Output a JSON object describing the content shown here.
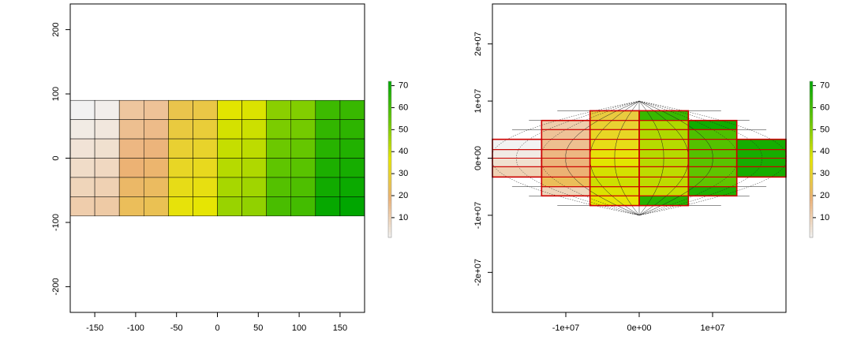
{
  "chart_data": [
    {
      "type": "heatmap",
      "title": "",
      "xlabel": "",
      "ylabel": "",
      "xlim": [
        -180,
        180
      ],
      "ylim": [
        -240,
        240
      ],
      "x_ticks": [
        {
          "value": -150,
          "label": "-150"
        },
        {
          "value": -100,
          "label": "-100"
        },
        {
          "value": -50,
          "label": "-50"
        },
        {
          "value": 0,
          "label": "0"
        },
        {
          "value": 50,
          "label": "50"
        },
        {
          "value": 100,
          "label": "100"
        },
        {
          "value": 150,
          "label": "150"
        }
      ],
      "y_ticks": [
        {
          "value": -200,
          "label": "-200"
        },
        {
          "value": -100,
          "label": "-100"
        },
        {
          "value": 0,
          "label": "0"
        },
        {
          "value": 100,
          "label": "100"
        },
        {
          "value": 200,
          "label": "200"
        }
      ],
      "x_edges": [
        -180,
        -150,
        -120,
        -90,
        -60,
        -30,
        0,
        30,
        60,
        90,
        120,
        150,
        180
      ],
      "y_edges": [
        90,
        60,
        30,
        0,
        -30,
        -60,
        -90
      ],
      "values": [
        [
          1,
          2,
          13,
          14,
          25,
          26,
          37,
          38,
          49,
          50,
          61,
          62
        ],
        [
          3,
          4,
          15,
          16,
          27,
          28,
          39,
          40,
          51,
          52,
          63,
          64
        ],
        [
          5,
          6,
          17,
          18,
          29,
          30,
          41,
          42,
          53,
          54,
          65,
          66
        ],
        [
          7,
          8,
          19,
          20,
          31,
          32,
          43,
          44,
          55,
          56,
          67,
          68
        ],
        [
          9,
          10,
          21,
          22,
          33,
          34,
          45,
          46,
          57,
          58,
          69,
          70
        ],
        [
          11,
          12,
          23,
          24,
          35,
          36,
          47,
          48,
          59,
          60,
          71,
          72
        ]
      ],
      "legend_ticks": [
        10,
        20,
        30,
        40,
        50,
        60,
        70
      ],
      "legend_range": [
        1,
        72
      ],
      "legend_position": "right"
    },
    {
      "type": "heatmap",
      "title": "",
      "xlabel": "",
      "ylabel": "",
      "xlim": [
        -20000000,
        20000000
      ],
      "ylim": [
        -27000000,
        27000000
      ],
      "x_ticks": [
        {
          "value": -10000000,
          "label": "-1e+07"
        },
        {
          "value": 0,
          "label": "0e+00"
        },
        {
          "value": 10000000,
          "label": "1e+07"
        }
      ],
      "y_ticks": [
        {
          "value": -20000000,
          "label": "-2e+07"
        },
        {
          "value": -10000000,
          "label": "-1e+07"
        },
        {
          "value": 0,
          "label": "0e+00"
        },
        {
          "value": 10000000,
          "label": "1e+07"
        },
        {
          "value": 20000000,
          "label": "2e+07"
        }
      ],
      "cells": [
        {
          "x": [
            -20000000,
            -13300000
          ],
          "y": [
            1500000,
            3300000
          ],
          "value": 1
        },
        {
          "x": [
            -20000000,
            -13300000
          ],
          "y": [
            0,
            1500000
          ],
          "value": 3
        },
        {
          "x": [
            -20000000,
            -13300000
          ],
          "y": [
            -1500000,
            0
          ],
          "value": 6
        },
        {
          "x": [
            -20000000,
            -13300000
          ],
          "y": [
            -3300000,
            -1500000
          ],
          "value": 10
        },
        {
          "x": [
            -13300000,
            -6700000
          ],
          "y": [
            5000000,
            6600000
          ],
          "value": 11
        },
        {
          "x": [
            -13300000,
            -6700000
          ],
          "y": [
            3300000,
            5000000
          ],
          "value": 14
        },
        {
          "x": [
            -13300000,
            -6700000
          ],
          "y": [
            1500000,
            3300000
          ],
          "value": 15
        },
        {
          "x": [
            -13300000,
            -6700000
          ],
          "y": [
            0,
            1500000
          ],
          "value": 17
        },
        {
          "x": [
            -13300000,
            -6700000
          ],
          "y": [
            -1500000,
            0
          ],
          "value": 18
        },
        {
          "x": [
            -13300000,
            -6700000
          ],
          "y": [
            -3300000,
            -1500000
          ],
          "value": 19
        },
        {
          "x": [
            -13300000,
            -6700000
          ],
          "y": [
            -5000000,
            -3300000
          ],
          "value": 23
        },
        {
          "x": [
            -13300000,
            -6700000
          ],
          "y": [
            -6600000,
            -5000000
          ],
          "value": 9
        },
        {
          "x": [
            -6700000,
            0
          ],
          "y": [
            6600000,
            8300000
          ],
          "value": 27
        },
        {
          "x": [
            -6700000,
            0
          ],
          "y": [
            5000000,
            6600000
          ],
          "value": 29
        },
        {
          "x": [
            -6700000,
            0
          ],
          "y": [
            3300000,
            5000000
          ],
          "value": 31
        },
        {
          "x": [
            -6700000,
            0
          ],
          "y": [
            1500000,
            3300000
          ],
          "value": 33
        },
        {
          "x": [
            -6700000,
            0
          ],
          "y": [
            0,
            1500000
          ],
          "value": 35
        },
        {
          "x": [
            -6700000,
            0
          ],
          "y": [
            -1500000,
            0
          ],
          "value": 37
        },
        {
          "x": [
            -6700000,
            0
          ],
          "y": [
            -3300000,
            -1500000
          ],
          "value": 39
        },
        {
          "x": [
            -6700000,
            0
          ],
          "y": [
            -5000000,
            -3300000
          ],
          "value": 40
        },
        {
          "x": [
            -6700000,
            0
          ],
          "y": [
            -6600000,
            -5000000
          ],
          "value": 38
        },
        {
          "x": [
            -6700000,
            0
          ],
          "y": [
            -8300000,
            -6600000
          ],
          "value": 36
        },
        {
          "x": [
            0,
            6700000
          ],
          "y": [
            6600000,
            8300000
          ],
          "value": 62
        },
        {
          "x": [
            0,
            6700000
          ],
          "y": [
            5000000,
            6600000
          ],
          "value": 44
        },
        {
          "x": [
            0,
            6700000
          ],
          "y": [
            3300000,
            5000000
          ],
          "value": 44
        },
        {
          "x": [
            0,
            6700000
          ],
          "y": [
            1500000,
            3300000
          ],
          "value": 43
        },
        {
          "x": [
            0,
            6700000
          ],
          "y": [
            0,
            1500000
          ],
          "value": 43
        },
        {
          "x": [
            0,
            6700000
          ],
          "y": [
            -1500000,
            0
          ],
          "value": 43
        },
        {
          "x": [
            0,
            6700000
          ],
          "y": [
            -3300000,
            -1500000
          ],
          "value": 42
        },
        {
          "x": [
            0,
            6700000
          ],
          "y": [
            -5000000,
            -3300000
          ],
          "value": 42
        },
        {
          "x": [
            0,
            6700000
          ],
          "y": [
            -6600000,
            -5000000
          ],
          "value": 41
        },
        {
          "x": [
            0,
            6700000
          ],
          "y": [
            -8300000,
            -6600000
          ],
          "value": 65
        },
        {
          "x": [
            6700000,
            13300000
          ],
          "y": [
            5000000,
            6600000
          ],
          "value": 69
        },
        {
          "x": [
            6700000,
            13300000
          ],
          "y": [
            3300000,
            5000000
          ],
          "value": 58
        },
        {
          "x": [
            6700000,
            13300000
          ],
          "y": [
            1500000,
            3300000
          ],
          "value": 57
        },
        {
          "x": [
            6700000,
            13300000
          ],
          "y": [
            0,
            1500000
          ],
          "value": 57
        },
        {
          "x": [
            6700000,
            13300000
          ],
          "y": [
            -1500000,
            0
          ],
          "value": 56
        },
        {
          "x": [
            6700000,
            13300000
          ],
          "y": [
            -3300000,
            -1500000
          ],
          "value": 55
        },
        {
          "x": [
            6700000,
            13300000
          ],
          "y": [
            -5000000,
            -3300000
          ],
          "value": 55
        },
        {
          "x": [
            6700000,
            13300000
          ],
          "y": [
            -6600000,
            -5000000
          ],
          "value": 66
        },
        {
          "x": [
            13300000,
            20000000
          ],
          "y": [
            1500000,
            3300000
          ],
          "value": 68
        },
        {
          "x": [
            13300000,
            20000000
          ],
          "y": [
            0,
            1500000
          ],
          "value": 68
        },
        {
          "x": [
            13300000,
            20000000
          ],
          "y": [
            -1500000,
            0
          ],
          "value": 68
        },
        {
          "x": [
            13300000,
            20000000
          ],
          "y": [
            -3300000,
            -1500000
          ],
          "value": 68
        }
      ],
      "outlined_blocks": [
        {
          "x": [
            -20000000,
            -13300000
          ],
          "y": [
            -3300000,
            3300000
          ]
        },
        {
          "x": [
            -13300000,
            -6700000
          ],
          "y": [
            -6600000,
            6600000
          ]
        },
        {
          "x": [
            -6700000,
            0
          ],
          "y": [
            -8300000,
            8300000
          ]
        },
        {
          "x": [
            0,
            6700000
          ],
          "y": [
            -8300000,
            8300000
          ]
        },
        {
          "x": [
            6700000,
            13300000
          ],
          "y": [
            -6600000,
            6600000
          ]
        },
        {
          "x": [
            13300000,
            20000000
          ],
          "y": [
            -3300000,
            3300000
          ]
        }
      ],
      "overlay": "projected graticule (dotted outer meridians, solid inner lines)",
      "legend_ticks": [
        10,
        20,
        30,
        40,
        50,
        60,
        70
      ],
      "legend_range": [
        1,
        72
      ],
      "legend_position": "right"
    }
  ],
  "colors": {
    "low": "#F2F2F2",
    "ramp_stops": [
      "#F2F2F2",
      "#ECB176",
      "#E6E600",
      "#63C600",
      "#00A600"
    ],
    "cell_border": "#000000",
    "block_outline": "#CC0000",
    "axis": "#000000"
  }
}
